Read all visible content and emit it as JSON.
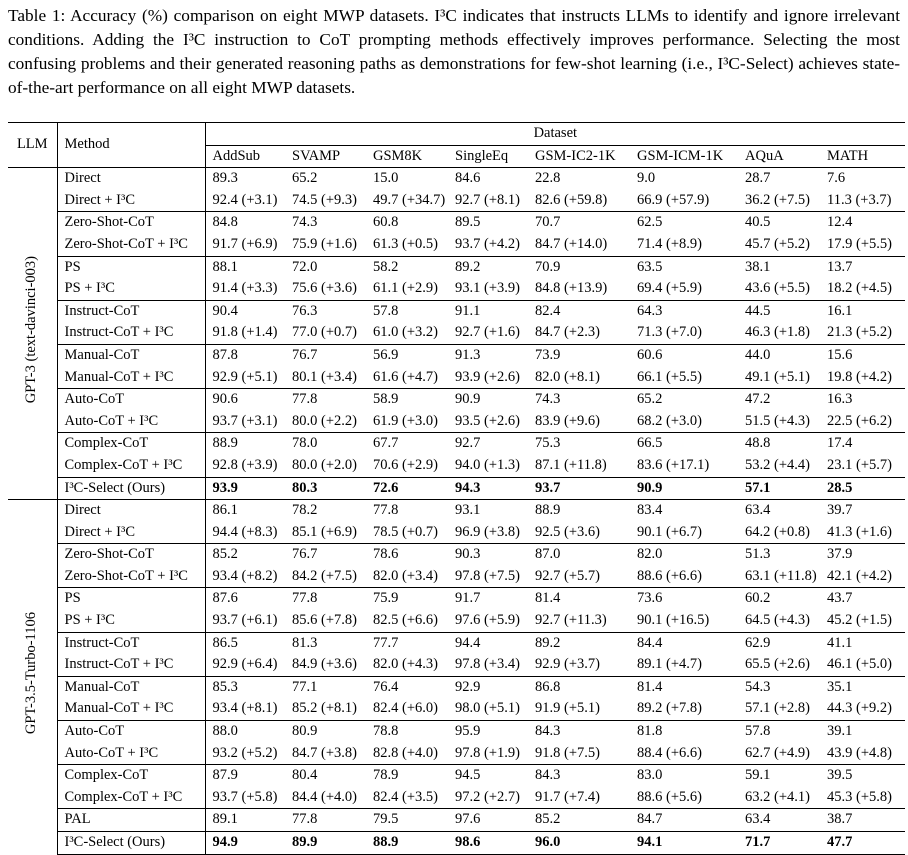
{
  "caption": "Table 1: Accuracy (%) comparison on eight MWP datasets. I³C indicates that instructs LLMs to identify and ignore irrelevant conditions. Adding the I³C instruction to CoT prompting methods effectively improves performance. Selecting the most confusing problems and their generated reasoning paths as demonstrations for few-shot learning (i.e., I³C-Select) achieves state-of-the-art performance on all eight MWP datasets.",
  "table": {
    "headers": {
      "llm": "LLM",
      "method": "Method",
      "group": "Dataset",
      "datasets": [
        "AddSub",
        "SVAMP",
        "GSM8K",
        "SingleEq",
        "GSM-IC2-1K",
        "GSM-ICM-1K",
        "AQuA",
        "MATH"
      ]
    },
    "groups": [
      {
        "llm": "GPT-3 (text-davinci-003)",
        "blocks": [
          [
            [
              "Direct",
              "89.3",
              "65.2",
              "15.0",
              "84.6",
              "22.8",
              "9.0",
              "28.7",
              "7.6"
            ],
            [
              "Direct + I³C",
              "92.4 (+3.1)",
              "74.5 (+9.3)",
              "49.7 (+34.7)",
              "92.7 (+8.1)",
              "82.6 (+59.8)",
              "66.9 (+57.9)",
              "36.2 (+7.5)",
              "11.3 (+3.7)"
            ]
          ],
          [
            [
              "Zero-Shot-CoT",
              "84.8",
              "74.3",
              "60.8",
              "89.5",
              "70.7",
              "62.5",
              "40.5",
              "12.4"
            ],
            [
              "Zero-Shot-CoT + I³C",
              "91.7 (+6.9)",
              "75.9 (+1.6)",
              "61.3 (+0.5)",
              "93.7 (+4.2)",
              "84.7 (+14.0)",
              "71.4 (+8.9)",
              "45.7 (+5.2)",
              "17.9 (+5.5)"
            ]
          ],
          [
            [
              "PS",
              "88.1",
              "72.0",
              "58.2",
              "89.2",
              "70.9",
              "63.5",
              "38.1",
              "13.7"
            ],
            [
              "PS + I³C",
              "91.4 (+3.3)",
              "75.6 (+3.6)",
              "61.1 (+2.9)",
              "93.1 (+3.9)",
              "84.8 (+13.9)",
              "69.4 (+5.9)",
              "43.6 (+5.5)",
              "18.2 (+4.5)"
            ]
          ],
          [
            [
              "Instruct-CoT",
              "90.4",
              "76.3",
              "57.8",
              "91.1",
              "82.4",
              "64.3",
              "44.5",
              "16.1"
            ],
            [
              "Instruct-CoT + I³C",
              "91.8 (+1.4)",
              "77.0 (+0.7)",
              "61.0 (+3.2)",
              "92.7 (+1.6)",
              "84.7 (+2.3)",
              "71.3 (+7.0)",
              "46.3 (+1.8)",
              "21.3 (+5.2)"
            ]
          ],
          [
            [
              "Manual-CoT",
              "87.8",
              "76.7",
              "56.9",
              "91.3",
              "73.9",
              "60.6",
              "44.0",
              "15.6"
            ],
            [
              "Manual-CoT + I³C",
              "92.9 (+5.1)",
              "80.1 (+3.4)",
              "61.6 (+4.7)",
              "93.9 (+2.6)",
              "82.0 (+8.1)",
              "66.1 (+5.5)",
              "49.1 (+5.1)",
              "19.8 (+4.2)"
            ]
          ],
          [
            [
              "Auto-CoT",
              "90.6",
              "77.8",
              "58.9",
              "90.9",
              "74.3",
              "65.2",
              "47.2",
              "16.3"
            ],
            [
              "Auto-CoT + I³C",
              "93.7 (+3.1)",
              "80.0 (+2.2)",
              "61.9 (+3.0)",
              "93.5 (+2.6)",
              "83.9 (+9.6)",
              "68.2 (+3.0)",
              "51.5 (+4.3)",
              "22.5 (+6.2)"
            ]
          ],
          [
            [
              "Complex-CoT",
              "88.9",
              "78.0",
              "67.7",
              "92.7",
              "75.3",
              "66.5",
              "48.8",
              "17.4"
            ],
            [
              "Complex-CoT + I³C",
              "92.8 (+3.9)",
              "80.0 (+2.0)",
              "70.6 (+2.9)",
              "94.0 (+1.3)",
              "87.1 (+11.8)",
              "83.6 (+17.1)",
              "53.2 (+4.4)",
              "23.1 (+5.7)"
            ]
          ],
          [
            [
              "I³C-Select (Ours)",
              "93.9",
              "80.3",
              "72.6",
              "94.3",
              "93.7",
              "90.9",
              "57.1",
              "28.5"
            ]
          ]
        ]
      },
      {
        "llm": "GPT-3.5-Turbo-1106",
        "blocks": [
          [
            [
              "Direct",
              "86.1",
              "78.2",
              "77.8",
              "93.1",
              "88.9",
              "83.4",
              "63.4",
              "39.7"
            ],
            [
              "Direct + I³C",
              "94.4 (+8.3)",
              "85.1 (+6.9)",
              "78.5 (+0.7)",
              "96.9 (+3.8)",
              "92.5 (+3.6)",
              "90.1 (+6.7)",
              "64.2 (+0.8)",
              "41.3 (+1.6)"
            ]
          ],
          [
            [
              "Zero-Shot-CoT",
              "85.2",
              "76.7",
              "78.6",
              "90.3",
              "87.0",
              "82.0",
              "51.3",
              "37.9"
            ],
            [
              "Zero-Shot-CoT + I³C",
              "93.4 (+8.2)",
              "84.2 (+7.5)",
              "82.0 (+3.4)",
              "97.8 (+7.5)",
              "92.7 (+5.7)",
              "88.6 (+6.6)",
              "63.1 (+11.8)",
              "42.1 (+4.2)"
            ]
          ],
          [
            [
              "PS",
              "87.6",
              "77.8",
              "75.9",
              "91.7",
              "81.4",
              "73.6",
              "60.2",
              "43.7"
            ],
            [
              "PS + I³C",
              "93.7 (+6.1)",
              "85.6 (+7.8)",
              "82.5 (+6.6)",
              "97.6 (+5.9)",
              "92.7 (+11.3)",
              "90.1 (+16.5)",
              "64.5 (+4.3)",
              "45.2 (+1.5)"
            ]
          ],
          [
            [
              "Instruct-CoT",
              "86.5",
              "81.3",
              "77.7",
              "94.4",
              "89.2",
              "84.4",
              "62.9",
              "41.1"
            ],
            [
              "Instruct-CoT + I³C",
              "92.9 (+6.4)",
              "84.9 (+3.6)",
              "82.0 (+4.3)",
              "97.8 (+3.4)",
              "92.9 (+3.7)",
              "89.1 (+4.7)",
              "65.5 (+2.6)",
              "46.1 (+5.0)"
            ]
          ],
          [
            [
              "Manual-CoT",
              "85.3",
              "77.1",
              "76.4",
              "92.9",
              "86.8",
              "81.4",
              "54.3",
              "35.1"
            ],
            [
              "Manual-CoT + I³C",
              "93.4 (+8.1)",
              "85.2 (+8.1)",
              "82.4 (+6.0)",
              "98.0 (+5.1)",
              "91.9 (+5.1)",
              "89.2 (+7.8)",
              "57.1 (+2.8)",
              "44.3 (+9.2)"
            ]
          ],
          [
            [
              "Auto-CoT",
              "88.0",
              "80.9",
              "78.8",
              "95.9",
              "84.3",
              "81.8",
              "57.8",
              "39.1"
            ],
            [
              "Auto-CoT + I³C",
              "93.2 (+5.2)",
              "84.7 (+3.8)",
              "82.8 (+4.0)",
              "97.8 (+1.9)",
              "91.8 (+7.5)",
              "88.4 (+6.6)",
              "62.7 (+4.9)",
              "43.9 (+4.8)"
            ]
          ],
          [
            [
              "Complex-CoT",
              "87.9",
              "80.4",
              "78.9",
              "94.5",
              "84.3",
              "83.0",
              "59.1",
              "39.5"
            ],
            [
              "Complex-CoT + I³C",
              "93.7 (+5.8)",
              "84.4 (+4.0)",
              "82.4 (+3.5)",
              "97.2 (+2.7)",
              "91.7 (+7.4)",
              "88.6 (+5.6)",
              "63.2 (+4.1)",
              "45.3 (+5.8)"
            ]
          ],
          [
            [
              "PAL",
              "89.1",
              "77.8",
              "79.5",
              "97.6",
              "85.2",
              "84.7",
              "63.4",
              "38.7"
            ]
          ],
          [
            [
              "I³C-Select (Ours)",
              "94.9",
              "89.9",
              "88.9",
              "98.6",
              "96.0",
              "94.1",
              "71.7",
              "47.7"
            ]
          ]
        ]
      }
    ]
  }
}
